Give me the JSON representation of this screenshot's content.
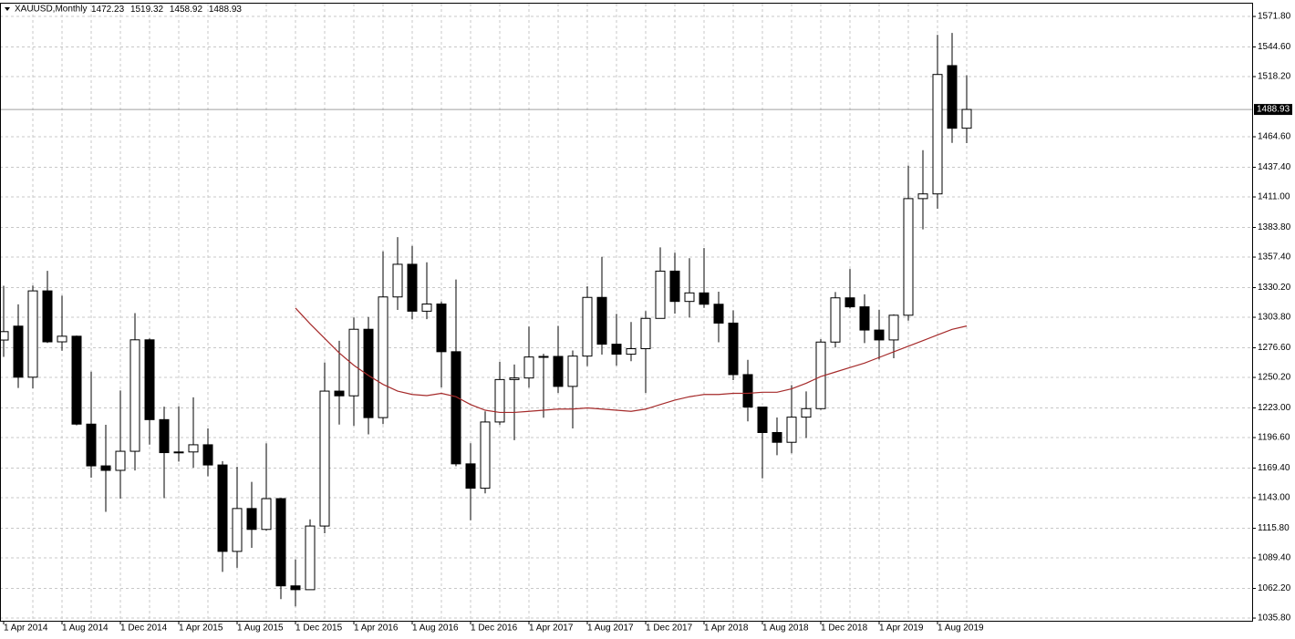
{
  "chart_data": {
    "type": "candlestick",
    "title": "XAUUSD,Monthly",
    "categories": [
      "1 Apr 2014",
      null,
      null,
      null,
      "1 Aug 2014",
      null,
      null,
      null,
      "1 Dec 2014",
      null,
      null,
      null,
      "1 Apr 2015",
      null,
      null,
      null,
      "1 Aug 2015",
      null,
      null,
      null,
      "1 Dec 2015",
      null,
      null,
      null,
      "1 Apr 2016",
      null,
      null,
      null,
      "1 Aug 2016",
      null,
      null,
      null,
      "1 Dec 2016",
      null,
      null,
      null,
      "1 Apr 2017",
      null,
      null,
      null,
      "1 Aug 2017",
      null,
      null,
      null,
      "1 Dec 2017",
      null,
      null,
      null,
      "1 Apr 2018",
      null,
      null,
      null,
      "1 Aug 2018",
      null,
      null,
      null,
      "1 Dec 2018",
      null,
      null,
      null,
      "1 Apr 2019",
      null,
      null,
      null,
      "1 Aug 2019",
      null,
      null
    ],
    "open": [
      1283.5,
      1295.9,
      1250.4,
      1327.3,
      1281.9,
      1286.9,
      1208.6,
      1171.4,
      1167.4,
      1184.4,
      1283.7,
      1212.6,
      1183.2,
      1183.8,
      1190.2,
      1172.2,
      1095.2,
      1133.4,
      1114.8,
      1142.2,
      1064.5,
      1061.1,
      1117.8,
      1238.0,
      1233.8,
      1293.1,
      1214.4,
      1321.9,
      1351.0,
      1309.2,
      1315.6,
      1273.1,
      1173.2,
      1151.5,
      1210.5,
      1248.3,
      1249.7,
      1268.4,
      1268.9,
      1242.2,
      1269.2,
      1321.5,
      1279.8,
      1270.9,
      1275.8,
      1302.8,
      1344.9,
      1317.9,
      1325.5,
      1315.4,
      1298.6,
      1252.7,
      1223.8,
      1201.1,
      1192.4,
      1214.8,
      1222.4,
      1281.7,
      1321.1,
      1313.1,
      1292.4,
      1283.6,
      1305.6,
      1409.5,
      1413.7,
      1528.0,
      1472.23
    ],
    "high": [
      1331.9,
      1315.3,
      1332.1,
      1345.2,
      1323.0,
      1287.5,
      1255.3,
      1208.0,
      1238.6,
      1307.5,
      1285.0,
      1224.1,
      1224.5,
      1232.5,
      1204.8,
      1175.6,
      1170.5,
      1157.1,
      1191.5,
      1142.8,
      1088.1,
      1123.7,
      1263.5,
      1282.8,
      1303.6,
      1304.0,
      1362.5,
      1375.2,
      1367.4,
      1352.8,
      1317.7,
      1337.4,
      1191.6,
      1220.0,
      1264.0,
      1261.7,
      1295.5,
      1271.2,
      1296.1,
      1274.2,
      1331.3,
      1357.6,
      1306.8,
      1299.6,
      1309.3,
      1366.1,
      1361.3,
      1356.4,
      1365.5,
      1326.6,
      1309.9,
      1265.9,
      1224.1,
      1214.5,
      1243.3,
      1237.7,
      1284.3,
      1326.3,
      1346.8,
      1324.2,
      1310.5,
      1306.4,
      1438.9,
      1452.7,
      1555.4,
      1557.1,
      1519.32
    ],
    "low": [
      1268.5,
      1240.8,
      1240.5,
      1280.9,
      1274.0,
      1207.5,
      1160.9,
      1130.4,
      1142.2,
      1167.3,
      1190.3,
      1142.6,
      1175.2,
      1169.8,
      1162.1,
      1077.0,
      1080.6,
      1098.4,
      1113.7,
      1052.7,
      1046.2,
      1061.0,
      1111.4,
      1208.2,
      1207.1,
      1199.5,
      1208.6,
      1310.3,
      1301.9,
      1302.1,
      1241.3,
      1171.1,
      1122.9,
      1146.9,
      1207.9,
      1194.3,
      1241.1,
      1214.3,
      1236.3,
      1204.8,
      1260.3,
      1270.5,
      1260.7,
      1264.6,
      1236.3,
      1302.6,
      1307.1,
      1303.5,
      1312.2,
      1281.5,
      1247.8,
      1211.0,
      1160.3,
      1180.9,
      1182.6,
      1196.2,
      1221.4,
      1276.8,
      1311.7,
      1280.8,
      1266.2,
      1267.3,
      1300.8,
      1382.1,
      1400.5,
      1459.2,
      1458.92
    ],
    "close": [
      1291.0,
      1250.4,
      1327.3,
      1281.9,
      1286.9,
      1208.6,
      1171.4,
      1167.4,
      1184.4,
      1283.7,
      1212.6,
      1183.2,
      1183.8,
      1190.2,
      1172.2,
      1095.2,
      1133.4,
      1114.8,
      1142.2,
      1064.5,
      1061.1,
      1117.8,
      1238.0,
      1233.8,
      1293.1,
      1214.4,
      1321.9,
      1351.0,
      1309.2,
      1315.6,
      1273.1,
      1173.2,
      1151.5,
      1210.5,
      1248.3,
      1249.7,
      1268.4,
      1268.9,
      1242.2,
      1269.2,
      1321.5,
      1279.8,
      1270.9,
      1275.8,
      1302.8,
      1344.9,
      1317.9,
      1325.5,
      1315.4,
      1298.6,
      1252.7,
      1223.8,
      1201.1,
      1192.4,
      1214.8,
      1222.4,
      1281.7,
      1321.1,
      1313.1,
      1292.4,
      1283.6,
      1305.6,
      1409.5,
      1413.7,
      1520.1,
      1472.2,
      1488.93
    ],
    "up_color": "#ffffff",
    "down_color": "#000000",
    "ma": {
      "color": "#a52a2a",
      "values": [
        null,
        null,
        null,
        null,
        null,
        null,
        null,
        null,
        null,
        null,
        null,
        null,
        null,
        null,
        null,
        null,
        null,
        null,
        null,
        null,
        1312,
        1298,
        1285,
        1272,
        1261,
        1252,
        1244,
        1238,
        1235,
        1234,
        1236,
        1233,
        1226,
        1221,
        1219,
        1219,
        1220,
        1221,
        1222,
        1222,
        1223,
        1222,
        1221,
        1220,
        1222,
        1226,
        1230,
        1233,
        1235,
        1235,
        1236,
        1236,
        1237,
        1237,
        1240,
        1245,
        1251,
        1255,
        1259,
        1263,
        1268,
        1273,
        1278,
        1283,
        1288,
        1293,
        1296
      ]
    },
    "ylim": [
      1033.4,
      1583.2
    ],
    "yticks": [
      {
        "value": 1571.8,
        "label": "1571.80"
      },
      {
        "value": 1544.6,
        "label": "1544.60"
      },
      {
        "value": 1518.2,
        "label": "1518.20"
      },
      {
        "value": 1464.6,
        "label": "1464.60"
      },
      {
        "value": 1437.4,
        "label": "1437.40"
      },
      {
        "value": 1411,
        "label": "1411.00"
      },
      {
        "value": 1383.8,
        "label": "1383.80"
      },
      {
        "value": 1357.4,
        "label": "1357.40"
      },
      {
        "value": 1330.2,
        "label": "1330.20"
      },
      {
        "value": 1303.8,
        "label": "1303.80"
      },
      {
        "value": 1276.6,
        "label": "1276.60"
      },
      {
        "value": 1250.2,
        "label": "1250.20"
      },
      {
        "value": 1223,
        "label": "1223.00"
      },
      {
        "value": 1196.6,
        "label": "1196.60"
      },
      {
        "value": 1169.4,
        "label": "1169.40"
      },
      {
        "value": 1143,
        "label": "1143.00"
      },
      {
        "value": 1115.8,
        "label": "1115.80"
      },
      {
        "value": 1089.4,
        "label": "1089.40"
      },
      {
        "value": 1062.2,
        "label": "1062.20"
      },
      {
        "value": 1035.8,
        "label": "1035.80"
      }
    ],
    "last_price": {
      "value": 1488.93,
      "label": "1488.93"
    },
    "grid": true
  }
}
